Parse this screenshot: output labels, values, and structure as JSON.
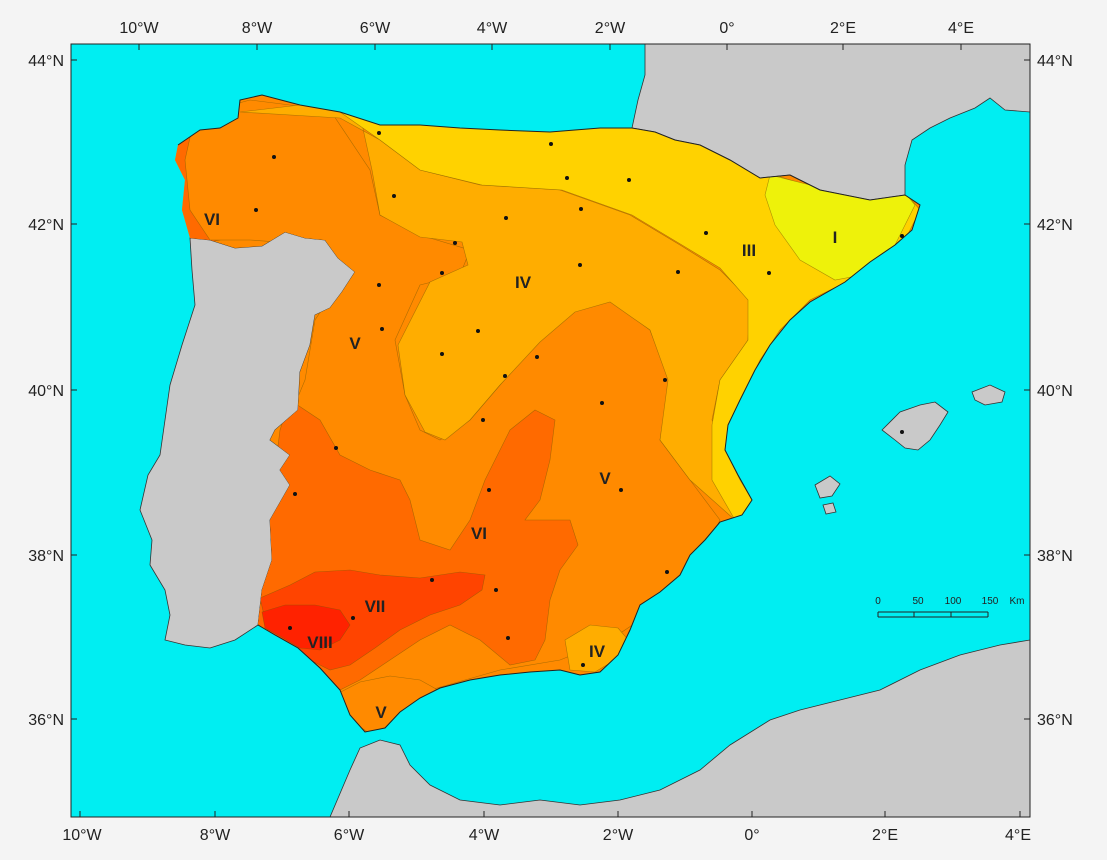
{
  "map": {
    "colors": {
      "sea": "#00eef2",
      "land_other": "#c9c9c9",
      "zone_I": "#eef20a",
      "zone_III": "#ffd200",
      "zone_IV": "#ffad00",
      "zone_V": "#ff8a00",
      "zone_VI": "#ff6a00",
      "zone_VII": "#ff4400",
      "zone_VIII": "#ff2200"
    },
    "top_longitude_labels": [
      "10°W",
      "8°W",
      "6°W",
      "4°W",
      "2°W",
      "0°",
      "2°E",
      "4°E"
    ],
    "bottom_longitude_labels": [
      "10°W",
      "8°W",
      "6°W",
      "4°W",
      "2°W",
      "0°",
      "2°E",
      "4°E"
    ],
    "left_latitude_labels": [
      "44°N",
      "42°N",
      "40°N",
      "38°N",
      "36°N"
    ],
    "right_latitude_labels": [
      "44°N",
      "42°N",
      "40°N",
      "38°N",
      "36°N"
    ],
    "zones": [
      {
        "label": "I"
      },
      {
        "label": "III"
      },
      {
        "label": "IV"
      },
      {
        "label": "IV"
      },
      {
        "label": "V"
      },
      {
        "label": "V"
      },
      {
        "label": "V"
      },
      {
        "label": "VI"
      },
      {
        "label": "VI"
      },
      {
        "label": "VII"
      },
      {
        "label": "VIII"
      }
    ],
    "scale_bar": {
      "ticks": [
        "0",
        "50",
        "100",
        "150"
      ],
      "unit": "Km"
    }
  }
}
